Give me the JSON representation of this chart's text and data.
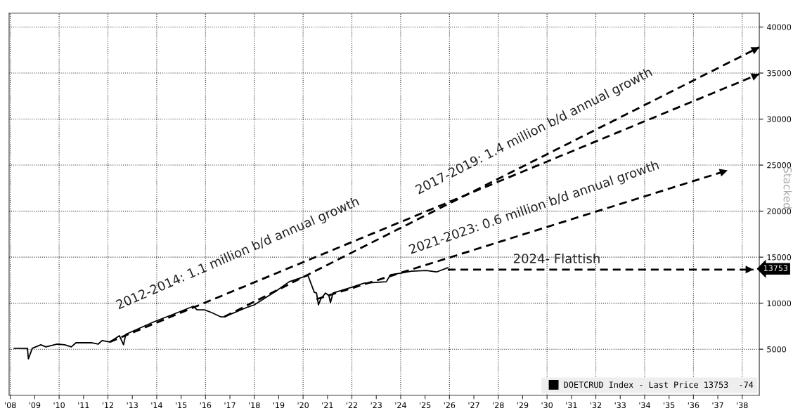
{
  "chart_data": {
    "type": "line",
    "x": [
      2008.16,
      2008.7,
      2008.74,
      2008.9,
      2009.25,
      2009.46,
      2009.92,
      2010.23,
      2010.5,
      2010.69,
      2011.35,
      2011.6,
      2011.76,
      2012.07,
      2012.47,
      2012.64,
      2012.73,
      2013.9,
      2014.93,
      2015.5,
      2015.65,
      2015.96,
      2016.25,
      2016.62,
      2016.77,
      2017.74,
      2018.0,
      2018.91,
      2019.43,
      2020.2,
      2020.46,
      2020.55,
      2020.63,
      2020.72,
      2020.92,
      2021.06,
      2021.12,
      2021.23,
      2021.98,
      2022.5,
      2023.41,
      2023.58,
      2023.96,
      2024.44,
      2025.05,
      2025.47,
      2025.93
    ],
    "series": [
      {
        "name": "DOETCRUD Index - Last Price 13753  -74",
        "color": "#000000",
        "values": [
          5100,
          5100,
          3950,
          5100,
          5480,
          5250,
          5550,
          5480,
          5250,
          5700,
          5700,
          5550,
          5940,
          5780,
          6470,
          5480,
          6620,
          7990,
          9060,
          9670,
          9280,
          9280,
          8980,
          8520,
          8520,
          9590,
          9820,
          11340,
          12330,
          13010,
          11190,
          11110,
          9820,
          10430,
          11110,
          10810,
          10050,
          11110,
          11720,
          12180,
          12330,
          13090,
          13240,
          13470,
          13550,
          13390,
          13850
        ]
      },
      {
        "type": "line",
        "x": [
          2012.07,
          2038.7
        ],
        "values": [
          5780,
          34900
        ],
        "color": "#000000",
        "line_style": "dashed"
      },
      {
        "type": "line",
        "x": [
          2016.77,
          2038.7
        ],
        "values": [
          8520,
          37800
        ],
        "color": "#000000",
        "line_style": "dashed"
      },
      {
        "type": "line",
        "x": [
          2020.55,
          2037.4
        ],
        "values": [
          10430,
          24430
        ],
        "color": "#000000",
        "line_style": "dashed"
      },
      {
        "type": "line",
        "x": [
          2025.93,
          2038.46
        ],
        "values": [
          13650,
          13650
        ],
        "color": "#000000",
        "line_style": "dashed"
      }
    ],
    "xlim": [
      2007.95,
      2038.7
    ],
    "ylim": [
      0,
      41500
    ],
    "xticks": [
      {
        "value": 2008,
        "label": "'08"
      },
      {
        "value": 2009,
        "label": "'09"
      },
      {
        "value": 2010,
        "label": "'10"
      },
      {
        "value": 2011,
        "label": "'11"
      },
      {
        "value": 2012,
        "label": "'12"
      },
      {
        "value": 2013,
        "label": "'13"
      },
      {
        "value": 2014,
        "label": "'14"
      },
      {
        "value": 2015,
        "label": "'15"
      },
      {
        "value": 2016,
        "label": "'16"
      },
      {
        "value": 2017,
        "label": "'17"
      },
      {
        "value": 2018,
        "label": "'18"
      },
      {
        "value": 2019,
        "label": "'19"
      },
      {
        "value": 2020,
        "label": "'20"
      },
      {
        "value": 2021,
        "label": "'21"
      },
      {
        "value": 2022,
        "label": "'22"
      },
      {
        "value": 2023,
        "label": "'23"
      },
      {
        "value": 2024,
        "label": "'24"
      },
      {
        "value": 2025,
        "label": "'25"
      },
      {
        "value": 2026,
        "label": "'26"
      },
      {
        "value": 2027,
        "label": "'27"
      },
      {
        "value": 2028,
        "label": "'28"
      },
      {
        "value": 2029,
        "label": "'29"
      },
      {
        "value": 2030,
        "label": "'30"
      },
      {
        "value": 2031,
        "label": "'31"
      },
      {
        "value": 2032,
        "label": "'32"
      },
      {
        "value": 2033,
        "label": "'33"
      },
      {
        "value": 2034,
        "label": "'34"
      },
      {
        "value": 2035,
        "label": "'35"
      },
      {
        "value": 2036,
        "label": "'36"
      },
      {
        "value": 2037,
        "label": "'37"
      },
      {
        "value": 2038,
        "label": "'38"
      }
    ],
    "yticks": [
      5000,
      10000,
      15000,
      20000,
      25000,
      30000,
      35000,
      40000
    ],
    "grid": true,
    "legend": "bottom right",
    "line_style": "solid",
    "marker": "none",
    "annotations": [
      "2012-2014: 1.1 million b/d annual growth",
      "2017-2019: 1.4 million b/d annual growth",
      "2021-2023: 0.6 million b/d annual growth",
      "2024- Flattish",
      "13753",
      "Stacked"
    ]
  }
}
